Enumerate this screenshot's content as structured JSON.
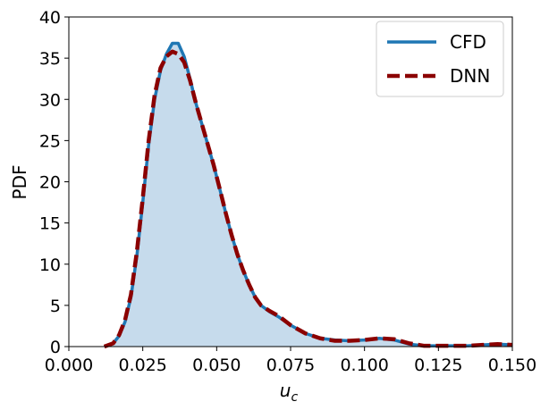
{
  "chart_data": {
    "type": "line",
    "xlabel_base": "u",
    "xlabel_sub": "c",
    "ylabel": "PDF",
    "xlim": [
      0.0,
      0.15
    ],
    "ylim": [
      0,
      40
    ],
    "xticks": [
      0.0,
      0.025,
      0.05,
      0.075,
      0.1,
      0.125,
      0.15
    ],
    "xtick_labels": [
      "0.000",
      "0.025",
      "0.050",
      "0.075",
      "0.100",
      "0.125",
      "0.150"
    ],
    "yticks": [
      0,
      5,
      10,
      15,
      20,
      25,
      30,
      35,
      40
    ],
    "ytick_labels": [
      "0",
      "5",
      "10",
      "15",
      "20",
      "25",
      "30",
      "35",
      "40"
    ],
    "grid": false,
    "legend_position": "top-right",
    "fill_under": "CFD",
    "colors": {
      "CFD": "#1f77b4",
      "DNN": "#8b0000",
      "fill": "#c6dbec"
    },
    "series": [
      {
        "name": "CFD",
        "style": "solid",
        "x": [
          0.012,
          0.015,
          0.017,
          0.019,
          0.021,
          0.023,
          0.025,
          0.027,
          0.029,
          0.031,
          0.033,
          0.035,
          0.037,
          0.039,
          0.041,
          0.043,
          0.045,
          0.047,
          0.049,
          0.051,
          0.053,
          0.055,
          0.057,
          0.059,
          0.061,
          0.063,
          0.065,
          0.068,
          0.071,
          0.075,
          0.08,
          0.085,
          0.09,
          0.095,
          0.1,
          0.105,
          0.11,
          0.115,
          0.12,
          0.125,
          0.13,
          0.135,
          0.14,
          0.145,
          0.15
        ],
        "y": [
          0.0,
          0.4,
          1.3,
          3.0,
          6.0,
          11.0,
          17.5,
          24.5,
          30.0,
          33.5,
          35.5,
          36.8,
          36.8,
          35.2,
          32.5,
          29.5,
          27.0,
          24.5,
          22.0,
          19.2,
          16.3,
          13.6,
          11.2,
          9.2,
          7.5,
          6.0,
          5.0,
          4.2,
          3.6,
          2.6,
          1.6,
          1.0,
          0.8,
          0.7,
          0.8,
          1.0,
          0.8,
          0.3,
          0.1,
          0.1,
          0.1,
          0.1,
          0.2,
          0.3,
          0.2
        ]
      },
      {
        "name": "DNN",
        "style": "dashed",
        "x": [
          0.012,
          0.015,
          0.017,
          0.019,
          0.021,
          0.023,
          0.025,
          0.027,
          0.029,
          0.031,
          0.033,
          0.035,
          0.037,
          0.039,
          0.041,
          0.043,
          0.045,
          0.047,
          0.049,
          0.051,
          0.053,
          0.055,
          0.057,
          0.059,
          0.061,
          0.063,
          0.065,
          0.068,
          0.071,
          0.075,
          0.08,
          0.085,
          0.09,
          0.095,
          0.1,
          0.105,
          0.11,
          0.115,
          0.12,
          0.125,
          0.13,
          0.135,
          0.14,
          0.145,
          0.15
        ],
        "y": [
          0.0,
          0.4,
          1.4,
          3.2,
          6.3,
          11.5,
          18.0,
          25.0,
          30.5,
          33.8,
          35.2,
          35.8,
          35.5,
          34.5,
          32.3,
          29.5,
          27.0,
          24.5,
          22.0,
          19.2,
          16.3,
          13.6,
          11.2,
          9.2,
          7.5,
          6.0,
          5.0,
          4.3,
          3.7,
          2.6,
          1.6,
          1.0,
          0.7,
          0.7,
          0.8,
          1.0,
          0.9,
          0.4,
          0.1,
          0.1,
          0.1,
          0.1,
          0.2,
          0.3,
          0.2
        ]
      }
    ]
  }
}
